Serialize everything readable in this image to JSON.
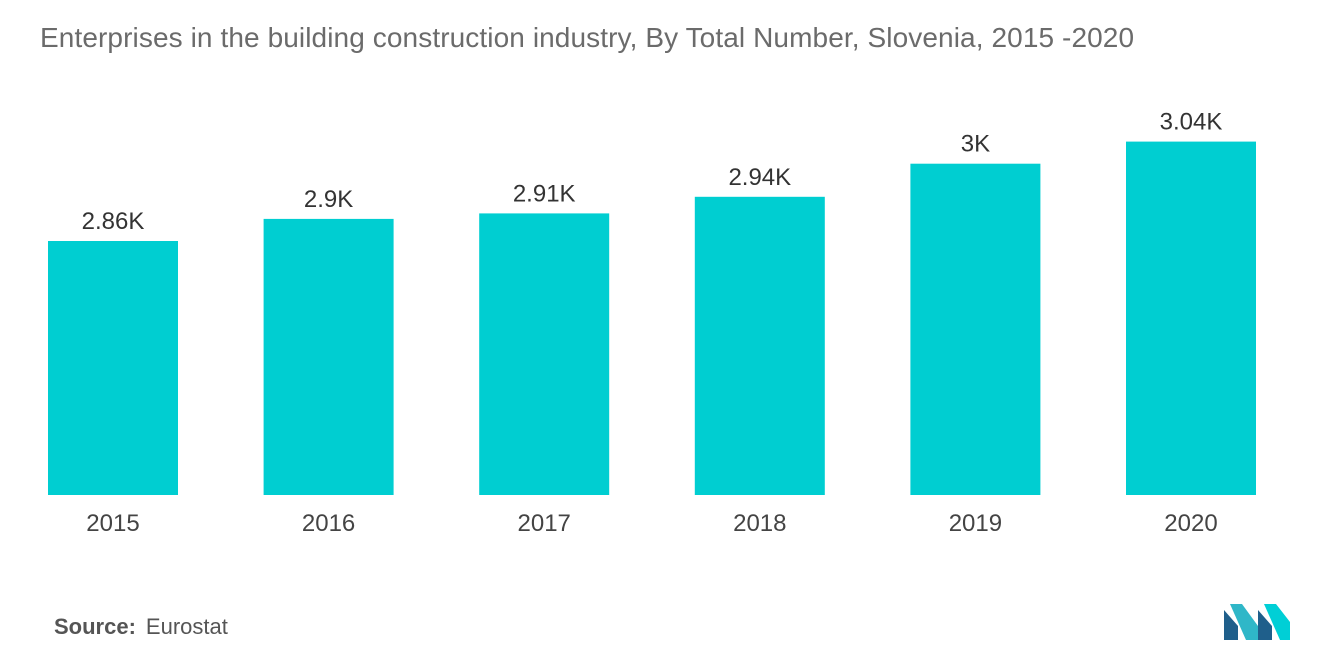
{
  "title": "Enterprises in the building construction industry, By Total Number, Slovenia, 2015 -2020",
  "source": {
    "label": "Source:",
    "value": "Eurostat"
  },
  "logo": {
    "icon": "mordor-intelligence-logo-icon",
    "colors": [
      "#1f5f8b",
      "#2fb7c8",
      "#00cfd6"
    ]
  },
  "colors": {
    "bar": "#00CED1",
    "label": "#333333",
    "title": "#6b6b6b"
  },
  "chart_data": {
    "type": "bar",
    "title": "Enterprises in the building construction industry, By Total Number, Slovenia, 2015 -2020",
    "categories": [
      "2015",
      "2016",
      "2017",
      "2018",
      "2019",
      "2020"
    ],
    "values": [
      2860,
      2900,
      2910,
      2940,
      3000,
      3040
    ],
    "data_labels": [
      "2.86K",
      "2.9K",
      "2.91K",
      "2.94K",
      "3K",
      "3.04K"
    ],
    "xlabel": "",
    "ylabel": "",
    "ylim": [
      0,
      3500
    ],
    "grid": false,
    "legend": "none"
  }
}
